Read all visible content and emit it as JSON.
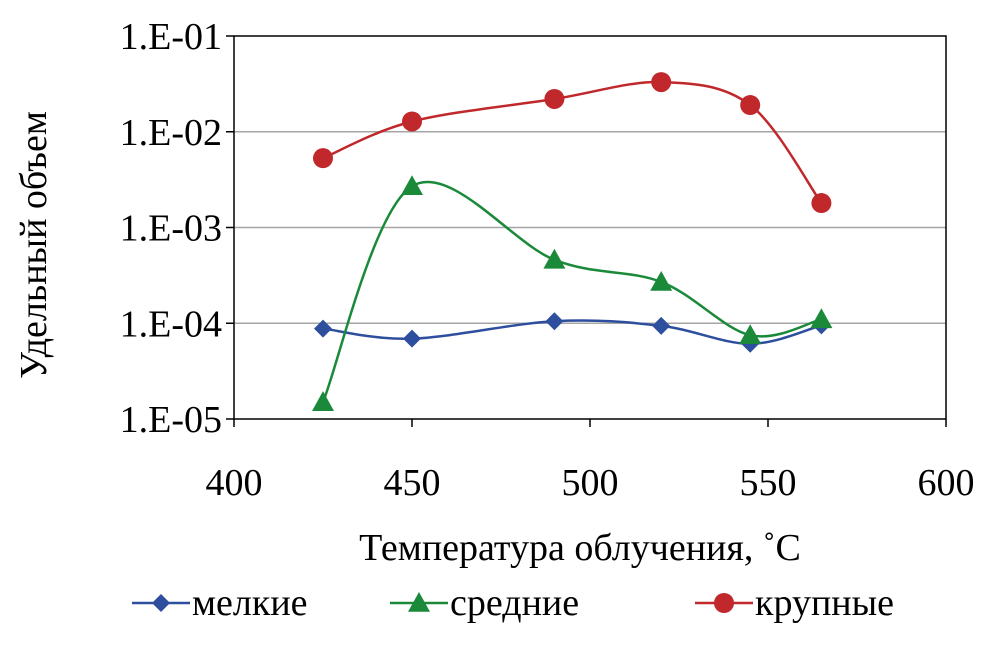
{
  "chart_data": {
    "type": "line",
    "title": "",
    "xlabel": "Температура облучения, ˚С",
    "ylabel": "Удельный объем",
    "xlim": [
      400,
      600
    ],
    "xticks": [
      "400",
      "450",
      "500",
      "550",
      "600"
    ],
    "ylim": [
      1e-05,
      0.1
    ],
    "yscale": "log",
    "yticks": [
      "1.E-05",
      "1.E-04",
      "1.E-03",
      "1.E-02",
      "1.E-01"
    ],
    "grid": "horizontal",
    "legend_position": "bottom",
    "smooth": true,
    "series": [
      {
        "name": "мелкие",
        "color": "#2e4f9e",
        "marker": "diamond",
        "x": [
          425,
          450,
          490,
          520,
          545,
          565
        ],
        "y": [
          8.8e-05,
          6.9e-05,
          0.000105,
          9.4e-05,
          6.1e-05,
          9.5e-05
        ]
      },
      {
        "name": "средние",
        "color": "#1a8a3a",
        "marker": "triangle",
        "x": [
          425,
          450,
          490,
          520,
          545,
          565
        ],
        "y": [
          1.5e-05,
          0.0027,
          0.00046,
          0.00027,
          7.5e-05,
          0.00011
        ]
      },
      {
        "name": "крупные",
        "color": "#c0282c",
        "marker": "circle",
        "x": [
          425,
          450,
          490,
          520,
          545,
          565
        ],
        "y": [
          0.0053,
          0.0128,
          0.022,
          0.033,
          0.019,
          0.0018
        ]
      }
    ]
  }
}
